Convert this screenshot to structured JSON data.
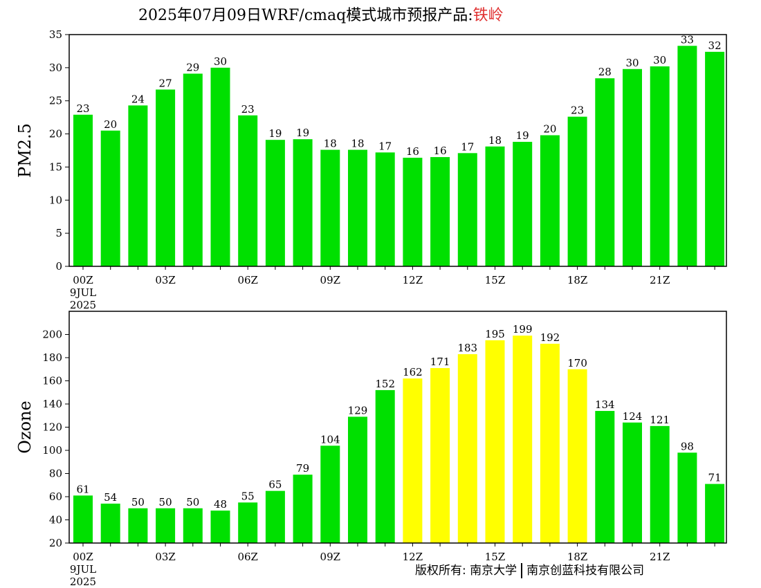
{
  "title": {
    "prefix": "2025年07月09日WRF/cmaq模式城市预报产品:",
    "city": "铁岭"
  },
  "copyright": {
    "left": "版权所有: 南京大学",
    "right": "南京创蓝科技有限公司"
  },
  "colors": {
    "green": "#00e000",
    "yellow": "#ffff00"
  },
  "x_axis": {
    "tick_labels": [
      "00Z",
      "03Z",
      "06Z",
      "09Z",
      "12Z",
      "15Z",
      "18Z",
      "21Z"
    ],
    "tick_hours": [
      0,
      3,
      6,
      9,
      12,
      15,
      18,
      21
    ],
    "date_day": "9JUL",
    "date_year": "2025"
  },
  "chart_data": [
    {
      "type": "bar",
      "ylabel": "PM2.5",
      "ylim": [
        0,
        35
      ],
      "yticks": [
        0,
        5,
        10,
        15,
        20,
        25,
        30,
        35
      ],
      "x": [
        0,
        1,
        2,
        3,
        4,
        5,
        6,
        7,
        8,
        9,
        10,
        11,
        12,
        13,
        14,
        15,
        16,
        17,
        18,
        19,
        20,
        21,
        22,
        23
      ],
      "values": [
        22.9,
        20.5,
        24.3,
        26.7,
        29.1,
        30.0,
        22.8,
        19.1,
        19.2,
        17.6,
        17.6,
        17.2,
        16.4,
        16.5,
        17.1,
        18.1,
        18.8,
        19.8,
        22.6,
        28.4,
        29.8,
        30.2,
        33.3,
        32.4
      ],
      "labels": [
        "23",
        "20",
        "24",
        "27",
        "29",
        "30",
        "23",
        "19",
        "19",
        "18",
        "18",
        "17",
        "16",
        "16",
        "17",
        "18",
        "19",
        "20",
        "23",
        "28",
        "30",
        "30",
        "33",
        "32"
      ],
      "colors": [
        "green",
        "green",
        "green",
        "green",
        "green",
        "green",
        "green",
        "green",
        "green",
        "green",
        "green",
        "green",
        "green",
        "green",
        "green",
        "green",
        "green",
        "green",
        "green",
        "green",
        "green",
        "green",
        "green",
        "green"
      ]
    },
    {
      "type": "bar",
      "ylabel": "Ozone",
      "ylim": [
        20,
        220
      ],
      "yticks": [
        20,
        40,
        60,
        80,
        100,
        120,
        140,
        160,
        180,
        200
      ],
      "x": [
        0,
        1,
        2,
        3,
        4,
        5,
        6,
        7,
        8,
        9,
        10,
        11,
        12,
        13,
        14,
        15,
        16,
        17,
        18,
        19,
        20,
        21,
        22,
        23
      ],
      "values": [
        61,
        54,
        50,
        50,
        50,
        48,
        55,
        65,
        79,
        104,
        129,
        152,
        162,
        171,
        183,
        195,
        199,
        192,
        170,
        134,
        124,
        121,
        98,
        71
      ],
      "labels": [
        "61",
        "54",
        "50",
        "50",
        "50",
        "48",
        "55",
        "65",
        "79",
        "104",
        "129",
        "152",
        "162",
        "171",
        "183",
        "195",
        "199",
        "192",
        "170",
        "134",
        "124",
        "121",
        "98",
        "71"
      ],
      "colors": [
        "green",
        "green",
        "green",
        "green",
        "green",
        "green",
        "green",
        "green",
        "green",
        "green",
        "green",
        "green",
        "yellow",
        "yellow",
        "yellow",
        "yellow",
        "yellow",
        "yellow",
        "yellow",
        "green",
        "green",
        "green",
        "green",
        "green"
      ]
    }
  ]
}
